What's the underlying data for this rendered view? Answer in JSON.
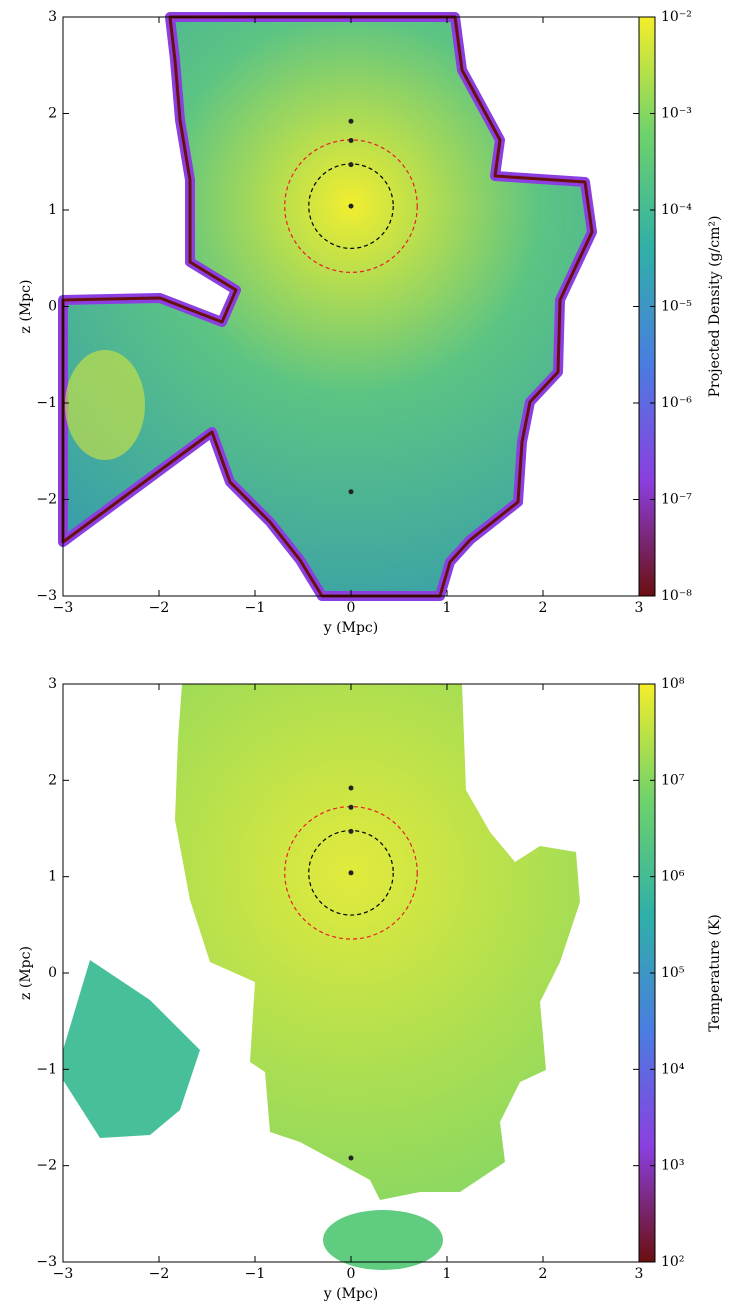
{
  "chart_data": [
    {
      "type": "image",
      "xlabel": "y  (Mpc)",
      "ylabel": "z  (Mpc)",
      "xlim": [
        -3,
        3
      ],
      "ylim": [
        -3,
        3
      ],
      "xticks": [
        {
          "value": -3,
          "label": "−3"
        },
        {
          "value": -2,
          "label": "−2"
        },
        {
          "value": -1,
          "label": "−1"
        },
        0,
        1,
        2,
        3
      ],
      "yticks": [
        {
          "value": -3,
          "label": "−3"
        },
        {
          "value": -2,
          "label": "−2"
        },
        {
          "value": -1,
          "label": "−1"
        },
        0,
        1,
        2,
        3
      ],
      "points": {
        "color": "#222222",
        "x": [
          0,
          0,
          0,
          0,
          0
        ],
        "y": [
          1.92,
          1.72,
          1.47,
          1.04,
          -1.92
        ]
      },
      "circles": [
        {
          "center_x": 0,
          "center_y": 1.04,
          "radius": 0.44,
          "color": "#000000"
        },
        {
          "center_x": 0,
          "center_y": 1.04,
          "radius": 0.69,
          "color": "#e8202a"
        }
      ],
      "colorbar": {
        "label": "Projected Density  (g/cm²)",
        "log": true,
        "lim": [
          1e-08,
          0.01
        ],
        "ticks": [
          {
            "value": 0.01,
            "label": "10⁻²"
          },
          {
            "value": 0.001,
            "label": "10⁻³"
          },
          {
            "value": 0.0001,
            "label": "10⁻⁴"
          },
          {
            "value": 1e-05,
            "label": "10⁻⁵"
          },
          {
            "value": 1e-06,
            "label": "10⁻⁶"
          },
          {
            "value": 1e-07,
            "label": "10⁻⁷"
          },
          {
            "value": 1e-08,
            "label": "10⁻⁸"
          }
        ],
        "colors": [
          "#6a0f0f",
          "#8b3fe0",
          "#4a7de0",
          "#2fb0a8",
          "#6fd26a",
          "#f4ee2a"
        ]
      }
    },
    {
      "type": "image",
      "xlabel": "y  (Mpc)",
      "ylabel": "z  (Mpc)",
      "xlim": [
        -3,
        3
      ],
      "ylim": [
        -3,
        3
      ],
      "xticks": [
        {
          "value": -3,
          "label": "−3"
        },
        {
          "value": -2,
          "label": "−2"
        },
        {
          "value": -1,
          "label": "−1"
        },
        0,
        1,
        2,
        3
      ],
      "yticks": [
        {
          "value": -3,
          "label": "−3"
        },
        {
          "value": -2,
          "label": "−2"
        },
        {
          "value": -1,
          "label": "−1"
        },
        0,
        1,
        2,
        3
      ],
      "points": {
        "color": "#222222",
        "x": [
          0,
          0,
          0,
          0,
          0
        ],
        "y": [
          1.92,
          1.72,
          1.47,
          1.04,
          -1.92
        ]
      },
      "circles": [
        {
          "center_x": 0,
          "center_y": 1.04,
          "radius": 0.44,
          "color": "#000000"
        },
        {
          "center_x": 0,
          "center_y": 1.04,
          "radius": 0.69,
          "color": "#e8202a"
        }
      ],
      "colorbar": {
        "label": "Temperature  (K)",
        "log": true,
        "lim": [
          100,
          100000000
        ],
        "ticks": [
          {
            "value": 100000000,
            "label": "10⁸"
          },
          {
            "value": 10000000,
            "label": "10⁷"
          },
          {
            "value": 1000000,
            "label": "10⁶"
          },
          {
            "value": 100000,
            "label": "10⁵"
          },
          {
            "value": 10000,
            "label": "10⁴"
          },
          {
            "value": 1000,
            "label": "10³"
          },
          {
            "value": 100,
            "label": "10²"
          }
        ],
        "colors": [
          "#6a0f0f",
          "#8b3fe0",
          "#4a7de0",
          "#2fb0a8",
          "#6fd26a",
          "#f4ee2a"
        ]
      }
    }
  ]
}
